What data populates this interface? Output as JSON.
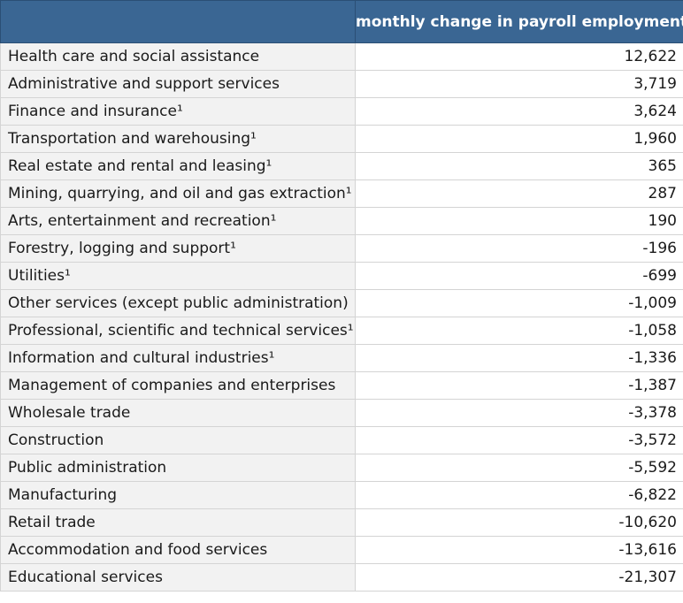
{
  "chart_data": {
    "type": "table",
    "header": {
      "corner": "",
      "column": "monthly change in payroll employment"
    },
    "rows": [
      {
        "label": "Health care and social assistance",
        "value": "12,622"
      },
      {
        "label": "Administrative and support services",
        "value": "3,719"
      },
      {
        "label": "Finance and insurance¹",
        "value": "3,624"
      },
      {
        "label": "Transportation and warehousing¹",
        "value": "1,960"
      },
      {
        "label": "Real estate and rental and leasing¹",
        "value": "365"
      },
      {
        "label": "Mining, quarrying, and oil and gas extraction¹",
        "value": "287"
      },
      {
        "label": "Arts, entertainment and recreation¹",
        "value": "190"
      },
      {
        "label": "Forestry, logging and support¹",
        "value": "-196"
      },
      {
        "label": "Utilities¹",
        "value": "-699"
      },
      {
        "label": "Other services (except public administration)",
        "value": "-1,009"
      },
      {
        "label": "Professional, scientific and technical services¹",
        "value": "-1,058"
      },
      {
        "label": "Information and cultural industries¹",
        "value": "-1,336"
      },
      {
        "label": "Management of companies and enterprises",
        "value": "-1,387"
      },
      {
        "label": "Wholesale trade",
        "value": "-3,378"
      },
      {
        "label": "Construction",
        "value": "-3,572"
      },
      {
        "label": "Public administration",
        "value": "-5,592"
      },
      {
        "label": "Manufacturing",
        "value": "-6,822"
      },
      {
        "label": "Retail trade",
        "value": "-10,620"
      },
      {
        "label": "Accommodation and food services",
        "value": "-13,616"
      },
      {
        "label": "Educational services",
        "value": "-21,307"
      }
    ]
  },
  "colors": {
    "header_background": "#3a6693",
    "header_text": "#ffffff",
    "label_cell_background": "#f2f2f2",
    "value_cell_background": "#ffffff",
    "border": "#d4d4d4"
  }
}
